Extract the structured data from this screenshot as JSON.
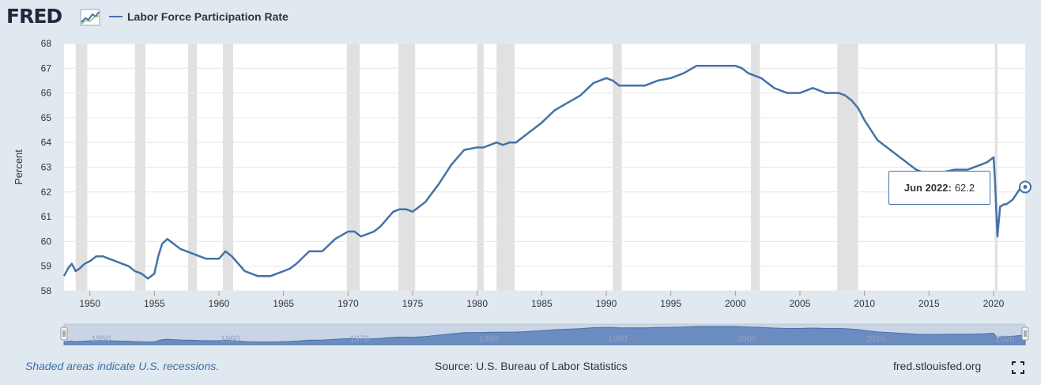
{
  "header": {
    "logo_text": "FRED",
    "logo_icon": "line-graph-icon",
    "series_title": "Labor Force Participation Rate",
    "series_color": "#4572a7"
  },
  "tooltip": {
    "date": "Jun 2022:",
    "value": "62.2"
  },
  "footer": {
    "note": "Shaded areas indicate U.S. recessions.",
    "source": "Source: U.S. Bureau of Labor Statistics",
    "site": "fred.stlouisfed.org",
    "fullscreen_icon": "fullscreen-icon"
  },
  "chart_data": {
    "type": "line",
    "title": "Labor Force Participation Rate",
    "ylabel": "Percent",
    "xlabel": "",
    "xlim": [
      1948.0,
      2022.45
    ],
    "ylim": [
      58,
      68
    ],
    "grid": true,
    "x_ticks": [
      1950,
      1955,
      1960,
      1965,
      1970,
      1975,
      1980,
      1985,
      1990,
      1995,
      2000,
      2005,
      2010,
      2015,
      2020
    ],
    "y_ticks": [
      58,
      59,
      60,
      61,
      62,
      63,
      64,
      65,
      66,
      67,
      68
    ],
    "recession_color": "#e1e1e1",
    "recessions": [
      [
        1948.9,
        1949.8
      ],
      [
        1953.5,
        1954.3
      ],
      [
        1957.6,
        1958.3
      ],
      [
        1960.3,
        1961.1
      ],
      [
        1969.9,
        1970.9
      ],
      [
        1973.9,
        1975.2
      ],
      [
        1980.0,
        1980.5
      ],
      [
        1981.5,
        1982.9
      ],
      [
        1990.5,
        1991.2
      ],
      [
        2001.2,
        2001.9
      ],
      [
        2007.9,
        2009.5
      ],
      [
        2020.1,
        2020.3
      ]
    ],
    "series": [
      {
        "name": "Labor Force Participation Rate",
        "x": [
          1948.0,
          1948.3,
          1948.6,
          1948.9,
          1949.2,
          1949.6,
          1950.0,
          1950.5,
          1951.0,
          1951.5,
          1952.0,
          1952.5,
          1953.0,
          1953.5,
          1954.0,
          1954.5,
          1955.0,
          1955.3,
          1955.6,
          1956.0,
          1956.5,
          1957.0,
          1957.5,
          1958.0,
          1958.5,
          1959.0,
          1959.5,
          1960.0,
          1960.5,
          1961.0,
          1961.5,
          1962.0,
          1962.5,
          1963.0,
          1963.5,
          1964.0,
          1964.5,
          1965.0,
          1965.5,
          1966.0,
          1967.0,
          1968.0,
          1969.0,
          1970.0,
          1970.5,
          1971.0,
          1971.5,
          1972.0,
          1972.5,
          1973.0,
          1973.5,
          1974.0,
          1974.5,
          1975.0,
          1975.5,
          1976.0,
          1977.0,
          1978.0,
          1979.0,
          1980.0,
          1980.5,
          1981.0,
          1981.5,
          1982.0,
          1982.5,
          1983.0,
          1984.0,
          1985.0,
          1986.0,
          1987.0,
          1988.0,
          1989.0,
          1990.0,
          1990.5,
          1991.0,
          1991.5,
          1992.0,
          1993.0,
          1994.0,
          1995.0,
          1996.0,
          1997.0,
          1998.0,
          1999.0,
          2000.0,
          2000.5,
          2001.0,
          2001.5,
          2002.0,
          2003.0,
          2004.0,
          2005.0,
          2006.0,
          2007.0,
          2008.0,
          2008.5,
          2009.0,
          2009.5,
          2010.0,
          2011.0,
          2012.0,
          2013.0,
          2014.0,
          2015.0,
          2016.0,
          2017.0,
          2018.0,
          2019.0,
          2019.5,
          2020.0,
          2020.1,
          2020.3,
          2020.5,
          2020.8,
          2021.0,
          2021.5,
          2022.0,
          2022.45
        ],
        "y": [
          58.6,
          58.9,
          59.1,
          58.8,
          58.9,
          59.1,
          59.2,
          59.4,
          59.4,
          59.3,
          59.2,
          59.1,
          59.0,
          58.8,
          58.7,
          58.5,
          58.7,
          59.4,
          59.9,
          60.1,
          59.9,
          59.7,
          59.6,
          59.5,
          59.4,
          59.3,
          59.3,
          59.3,
          59.6,
          59.4,
          59.1,
          58.8,
          58.7,
          58.6,
          58.6,
          58.6,
          58.7,
          58.8,
          58.9,
          59.1,
          59.6,
          59.6,
          60.1,
          60.4,
          60.4,
          60.2,
          60.3,
          60.4,
          60.6,
          60.9,
          61.2,
          61.3,
          61.3,
          61.2,
          61.4,
          61.6,
          62.3,
          63.1,
          63.7,
          63.8,
          63.8,
          63.9,
          64.0,
          63.9,
          64.0,
          64.0,
          64.4,
          64.8,
          65.3,
          65.6,
          65.9,
          66.4,
          66.6,
          66.5,
          66.3,
          66.3,
          66.3,
          66.3,
          66.5,
          66.6,
          66.8,
          67.1,
          67.1,
          67.1,
          67.1,
          67.0,
          66.8,
          66.7,
          66.6,
          66.2,
          66.0,
          66.0,
          66.2,
          66.0,
          66.0,
          65.9,
          65.7,
          65.4,
          64.9,
          64.1,
          63.7,
          63.3,
          62.9,
          62.7,
          62.8,
          62.9,
          62.9,
          63.1,
          63.2,
          63.4,
          62.6,
          60.2,
          61.4,
          61.5,
          61.5,
          61.7,
          62.1,
          62.2
        ]
      }
    ]
  }
}
